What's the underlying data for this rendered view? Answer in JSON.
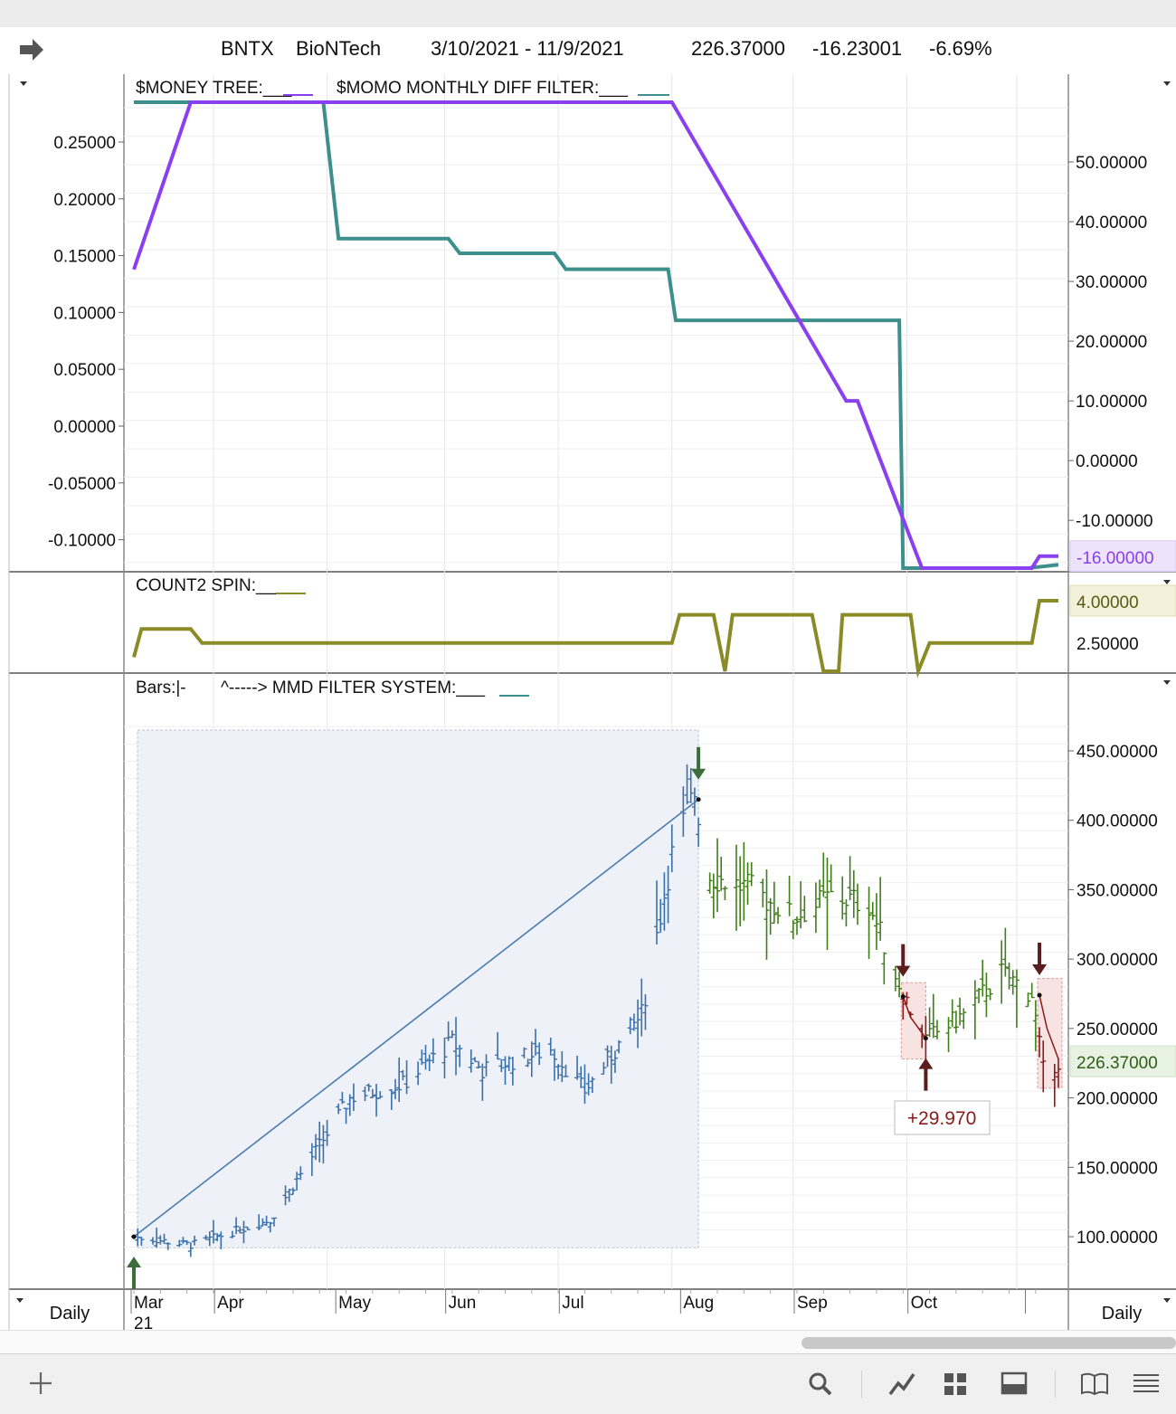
{
  "header": {
    "symbol": "BNTX",
    "name": "BioNTech",
    "date_range": "3/10/2021 - 11/9/2021",
    "last": "226.37000",
    "change": "-16.23001",
    "change_pct": "-6.69%"
  },
  "footer": {
    "left_period": "Daily",
    "right_period": "Daily",
    "year_label": "21"
  },
  "icons": {
    "header": "forward-arrow-icon",
    "toolbar": [
      "plus-icon",
      "search-icon",
      "draw-line-icon",
      "grid-icon",
      "layout-icon",
      "book-icon",
      "menu-icon"
    ]
  },
  "colors": {
    "teal": "#3d8f8c",
    "purple": "#8a3ff0",
    "olive": "#8a8a26",
    "bar_blue": "#3a6fa8",
    "bar_green": "#3e7d19",
    "bar_red": "#8b1a1a",
    "arrow_green": "#3b6e3b",
    "arrow_dark": "#5a1e1e"
  },
  "chart_data": [
    {
      "type": "line",
      "title": "",
      "legend": [
        "$MONEY TREE:___",
        "$MOMO MONTHLY DIFF FILTER:___"
      ],
      "x": [
        "2021-03-10",
        "2021-03-25",
        "2021-04-15",
        "2021-04-30",
        "2021-05-01",
        "2021-06-02",
        "2021-06-03",
        "2021-06-27",
        "2021-06-28",
        "2021-07-29",
        "2021-07-30",
        "2021-09-27",
        "2021-09-28",
        "2021-10-30",
        "2021-11-01",
        "2021-11-09"
      ],
      "left_axis": {
        "ticks": [
          "0.25000",
          "0.20000",
          "0.15000",
          "0.10000",
          "0.05000",
          "0.00000",
          "-0.05000",
          "-0.10000"
        ],
        "range": [
          -0.125,
          0.285
        ]
      },
      "right_axis": {
        "ticks": [
          "50.00000",
          "40.00000",
          "30.00000",
          "20.00000",
          "10.00000",
          "0.00000",
          "-10.00000"
        ],
        "range": [
          -18,
          60
        ],
        "last_value_label": "-16.00000"
      },
      "series": [
        {
          "name": "$MONEY TREE",
          "axis": "left",
          "x": [
            "2021-03-10",
            "2021-04-29",
            "2021-05-03",
            "2021-06-01",
            "2021-06-04",
            "2021-06-29",
            "2021-07-02",
            "2021-07-29",
            "2021-07-31",
            "2021-09-28",
            "2021-09-29",
            "2021-11-01",
            "2021-11-09"
          ],
          "values": [
            0.285,
            0.285,
            0.165,
            0.165,
            0.152,
            0.152,
            0.138,
            0.138,
            0.093,
            0.093,
            -0.125,
            -0.125,
            -0.122
          ]
        },
        {
          "name": "$MOMO MONTHLY DIFF FILTER",
          "axis": "right",
          "x": [
            "2021-03-10",
            "2021-03-25",
            "2021-07-30",
            "2021-09-14",
            "2021-09-17",
            "2021-10-04",
            "2021-11-02",
            "2021-11-04",
            "2021-11-09"
          ],
          "values": [
            32,
            60,
            60,
            10,
            10,
            -18,
            -18,
            -16,
            -16
          ]
        }
      ]
    },
    {
      "type": "line",
      "legend": [
        "COUNT2 SPIN:___"
      ],
      "right_axis": {
        "ticks": [
          "2.50000"
        ],
        "last_value_label": "4.00000"
      },
      "series": [
        {
          "name": "COUNT2 SPIN",
          "x": [
            "2021-03-10",
            "2021-03-12",
            "2021-03-25",
            "2021-03-28",
            "2021-07-30",
            "2021-08-01",
            "2021-08-10",
            "2021-08-13",
            "2021-08-15",
            "2021-09-05",
            "2021-09-08",
            "2021-09-12",
            "2021-09-13",
            "2021-09-15",
            "2021-10-01",
            "2021-10-03",
            "2021-10-06",
            "2021-11-02",
            "2021-11-04",
            "2021-11-09"
          ],
          "values": [
            2,
            3,
            3,
            2.5,
            2.5,
            3.5,
            3.5,
            1.5,
            3.5,
            3.5,
            1.5,
            1.5,
            3.5,
            3.5,
            3.5,
            1.5,
            2.5,
            2.5,
            4,
            4
          ]
        }
      ]
    },
    {
      "type": "ohlc",
      "legend": [
        "Bars:|-",
        "^-----> MMD FILTER SYSTEM:___"
      ],
      "right_axis": {
        "ticks": [
          "450.00000",
          "400.00000",
          "350.00000",
          "300.00000",
          "250.00000",
          "200.00000",
          "150.00000",
          "100.00000"
        ],
        "range": [
          60,
          490
        ],
        "last_value_label": "226.37000"
      },
      "x_tick_labels": [
        "Mar",
        "Apr",
        "May",
        "Jun",
        "Jul",
        "Aug",
        "Sep",
        "Oct"
      ],
      "price_path": {
        "x": [
          "2021-03-10",
          "2021-03-25",
          "2021-04-15",
          "2021-04-29",
          "2021-05-06",
          "2021-05-20",
          "2021-06-02",
          "2021-06-10",
          "2021-06-28",
          "2021-07-07",
          "2021-07-22",
          "2021-07-30",
          "2021-08-05",
          "2021-08-09",
          "2021-08-20",
          "2021-08-31",
          "2021-09-10",
          "2021-09-20",
          "2021-09-29",
          "2021-10-05",
          "2021-10-15",
          "2021-10-25",
          "2021-11-02",
          "2021-11-05",
          "2021-11-09"
        ],
        "values": [
          100,
          94,
          112,
          170,
          200,
          210,
          240,
          220,
          235,
          205,
          260,
          375,
          420,
          360,
          350,
          330,
          345,
          340,
          275,
          242,
          260,
          290,
          275,
          220,
          226
        ]
      },
      "trend_line": {
        "x": [
          "2021-03-10",
          "2021-08-06"
        ],
        "values": [
          100,
          415
        ]
      },
      "signals": [
        {
          "date": "2021-03-10",
          "direction": "up",
          "price": 100
        },
        {
          "date": "2021-08-06",
          "direction": "down",
          "price": 415
        },
        {
          "date": "2021-09-29",
          "direction": "down",
          "price": 273
        },
        {
          "date": "2021-10-05",
          "direction": "up",
          "price": 243
        },
        {
          "date": "2021-11-04",
          "direction": "down",
          "price": 274
        }
      ],
      "trade_annotation": "+29.970"
    }
  ]
}
